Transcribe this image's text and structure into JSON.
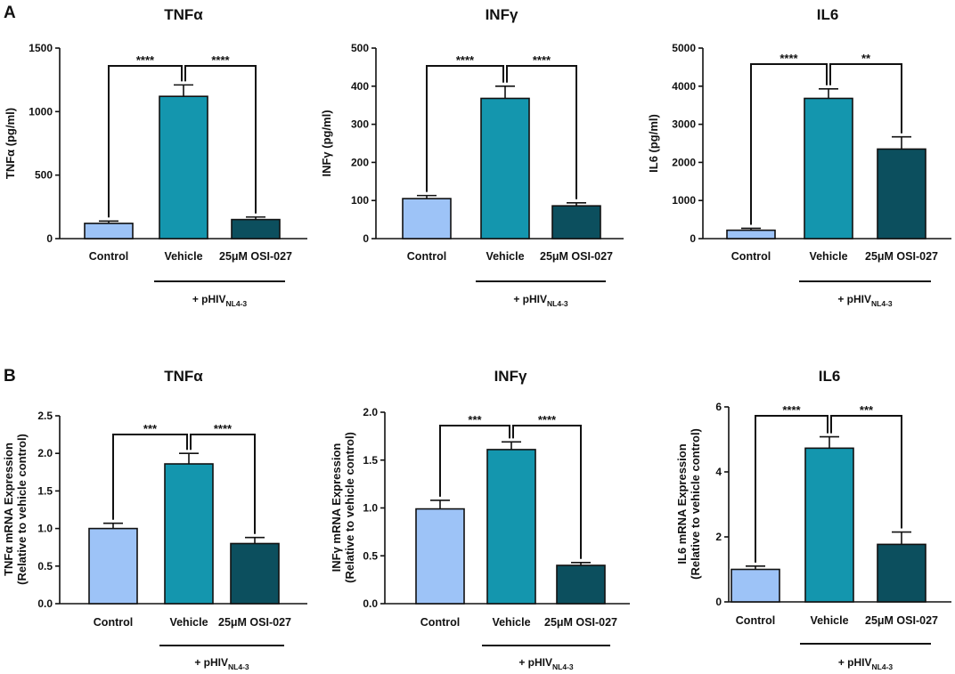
{
  "panels": [
    {
      "letter": "A"
    },
    {
      "letter": "B"
    }
  ],
  "colors": {
    "control": "#9DC3F7",
    "vehicle": "#1496AE",
    "osi": "#0C4F5E",
    "axis": "#111111"
  },
  "treatment": {
    "prefix": "+ pHIV",
    "subscript": "NL4-3"
  },
  "chart_data": [
    {
      "type": "bar",
      "title": "TNFα",
      "ylabel_lines": [
        "TNFα (pg/ml)"
      ],
      "categories": [
        "Control",
        "Vehicle",
        "25μM OSI-027"
      ],
      "values": [
        120,
        1120,
        150
      ],
      "errors": [
        18,
        90,
        20
      ],
      "ylim": [
        0,
        1500
      ],
      "yticks": [
        0,
        500,
        1000,
        1500
      ],
      "yticklabels": [
        "0",
        "500",
        "1000",
        "1500"
      ],
      "significance": [
        {
          "from": 0,
          "to": 1,
          "label": "****"
        },
        {
          "from": 1,
          "to": 2,
          "label": "****"
        }
      ]
    },
    {
      "type": "bar",
      "title": "INFγ",
      "ylabel_lines": [
        "INFγ (pg/ml)"
      ],
      "categories": [
        "Control",
        "Vehicle",
        "25μM OSI-027"
      ],
      "values": [
        105,
        368,
        86
      ],
      "errors": [
        8,
        32,
        8
      ],
      "ylim": [
        0,
        500
      ],
      "yticks": [
        0,
        100,
        200,
        300,
        400,
        500
      ],
      "yticklabels": [
        "0",
        "100",
        "200",
        "300",
        "400",
        "500"
      ],
      "significance": [
        {
          "from": 0,
          "to": 1,
          "label": "****"
        },
        {
          "from": 1,
          "to": 2,
          "label": "****"
        }
      ]
    },
    {
      "type": "bar",
      "title": "IL6",
      "ylabel_lines": [
        "IL6 (pg/ml)"
      ],
      "categories": [
        "Control",
        "Vehicle",
        "25μM OSI-027"
      ],
      "values": [
        220,
        3680,
        2350
      ],
      "errors": [
        50,
        250,
        320
      ],
      "ylim": [
        0,
        5000
      ],
      "yticks": [
        0,
        1000,
        2000,
        3000,
        4000,
        5000
      ],
      "yticklabels": [
        "0",
        "1000",
        "2000",
        "3000",
        "4000",
        "5000"
      ],
      "significance": [
        {
          "from": 0,
          "to": 1,
          "label": "****"
        },
        {
          "from": 1,
          "to": 2,
          "label": "**"
        }
      ]
    },
    {
      "type": "bar",
      "title": "TNFα",
      "ylabel_lines": [
        "TNFα mRNA Expression",
        "(Relative to vehicle control)"
      ],
      "categories": [
        "Control",
        "Vehicle",
        "25μM OSI-027"
      ],
      "values": [
        1.0,
        1.86,
        0.8
      ],
      "errors": [
        0.07,
        0.14,
        0.08
      ],
      "ylim": [
        0,
        2.5
      ],
      "yticks": [
        0,
        0.5,
        1,
        1.5,
        2,
        2.5
      ],
      "yticklabels": [
        "0.0",
        "0.5",
        "1.0",
        "1.5",
        "2.0",
        "2.5"
      ],
      "significance": [
        {
          "from": 0,
          "to": 1,
          "label": "***"
        },
        {
          "from": 1,
          "to": 2,
          "label": "****"
        }
      ]
    },
    {
      "type": "bar",
      "title": "INFγ",
      "ylabel_lines": [
        "INFγ mRNA Expression",
        "(Relative to vehicle control)"
      ],
      "categories": [
        "Control",
        "Vehicle",
        "25μM OSI-027"
      ],
      "values": [
        0.99,
        1.61,
        0.4
      ],
      "errors": [
        0.09,
        0.08,
        0.03
      ],
      "ylim": [
        0,
        2.0
      ],
      "yticks": [
        0,
        0.5,
        1,
        1.5,
        2
      ],
      "yticklabels": [
        "0.0",
        "0.5",
        "1.0",
        "1.5",
        "2.0"
      ],
      "significance": [
        {
          "from": 0,
          "to": 1,
          "label": "***"
        },
        {
          "from": 1,
          "to": 2,
          "label": "****"
        }
      ]
    },
    {
      "type": "bar",
      "title": "IL6",
      "ylabel_lines": [
        "IL6 mRNA Expression",
        "(Relative to vehicle control)"
      ],
      "categories": [
        "Control",
        "Vehicle",
        "25μM OSI-027"
      ],
      "values": [
        1.0,
        4.73,
        1.77
      ],
      "errors": [
        0.1,
        0.35,
        0.38
      ],
      "ylim": [
        0,
        6
      ],
      "yticks": [
        0,
        2,
        4,
        6
      ],
      "yticklabels": [
        "0",
        "2",
        "4",
        "6"
      ],
      "significance": [
        {
          "from": 0,
          "to": 1,
          "label": "****"
        },
        {
          "from": 1,
          "to": 2,
          "label": "***"
        }
      ]
    }
  ]
}
